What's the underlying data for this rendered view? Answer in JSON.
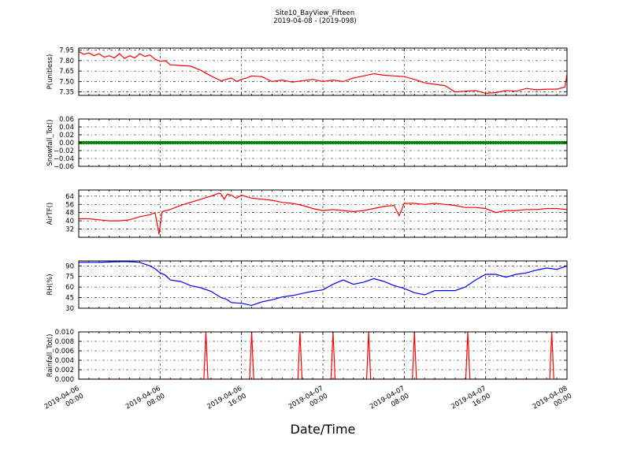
{
  "title": "Site10_BayView_Fifteen",
  "subtitle": "2019-04-08 - (2019-098)",
  "xlabel": "Date/Time",
  "x_tick_labels": [
    [
      "2019-04-06",
      "00:00"
    ],
    [
      "2019-04-06",
      "08:00"
    ],
    [
      "2019-04-06",
      "16:00"
    ],
    [
      "2019-04-07",
      "00:00"
    ],
    [
      "2019-04-07",
      "08:00"
    ],
    [
      "2019-04-07",
      "16:00"
    ],
    [
      "2019-04-08",
      "00:00"
    ]
  ],
  "chart_data": [
    {
      "type": "line",
      "ylabel": "P(unitless)",
      "color": "#ff0000",
      "xlim": [
        0,
        48
      ],
      "ylim": [
        7.3,
        7.98
      ],
      "yticks": [
        "7.95",
        "7.80",
        "7.65",
        "7.50",
        "7.35"
      ],
      "ytick_values": [
        7.95,
        7.8,
        7.65,
        7.5,
        7.35
      ],
      "grid": true,
      "series": [
        {
          "x": [
            0,
            0.5,
            1,
            1.5,
            2,
            2.5,
            3,
            3.5,
            4,
            4.5,
            5,
            5.5,
            6,
            6.5,
            7,
            7.5,
            8,
            8.5,
            9,
            10,
            11,
            12,
            13,
            14,
            15,
            15.5,
            16,
            16.5,
            17,
            18,
            19,
            20,
            21,
            22,
            23,
            24,
            25,
            26,
            27,
            28,
            29,
            30,
            31,
            32,
            33,
            34,
            35,
            36,
            37,
            38,
            39,
            40,
            41,
            42,
            43,
            44,
            45,
            46,
            47,
            47.8,
            48
          ],
          "y": [
            7.93,
            7.89,
            7.91,
            7.87,
            7.9,
            7.85,
            7.87,
            7.84,
            7.9,
            7.83,
            7.87,
            7.84,
            7.9,
            7.86,
            7.88,
            7.82,
            7.79,
            7.8,
            7.74,
            7.73,
            7.72,
            7.66,
            7.58,
            7.51,
            7.55,
            7.5,
            7.53,
            7.55,
            7.58,
            7.57,
            7.5,
            7.52,
            7.49,
            7.51,
            7.53,
            7.5,
            7.52,
            7.5,
            7.55,
            7.58,
            7.61,
            7.59,
            7.58,
            7.57,
            7.53,
            7.48,
            7.46,
            7.44,
            7.35,
            7.36,
            7.37,
            7.33,
            7.34,
            7.37,
            7.36,
            7.4,
            7.38,
            7.39,
            7.39,
            7.42,
            7.6
          ]
        }
      ]
    },
    {
      "type": "scatter",
      "ylabel": "Snowfall_Tot()",
      "color": "#008000",
      "xlim": [
        0,
        48
      ],
      "ylim": [
        -0.06,
        0.06
      ],
      "yticks": [
        "0.06",
        "0.04",
        "0.02",
        "0.00",
        "−0.02",
        "−0.04",
        "−0.06"
      ],
      "ytick_values": [
        0.06,
        0.04,
        0.02,
        0.0,
        -0.02,
        -0.04,
        -0.06
      ],
      "grid": true,
      "series": [
        {
          "x_start": 0,
          "x_end": 48,
          "x_step": 0.25,
          "constant_y": 0.0
        }
      ]
    },
    {
      "type": "line",
      "ylabel": "AirTF()",
      "color": "#ff0000",
      "xlim": [
        0,
        48
      ],
      "ylim": [
        24,
        70
      ],
      "yticks": [
        "64",
        "56",
        "48",
        "40",
        "32"
      ],
      "ytick_values": [
        64,
        56,
        48,
        40,
        32
      ],
      "grid": true,
      "series": [
        {
          "x": [
            0,
            1,
            2,
            3,
            4,
            5,
            6,
            7,
            7.5,
            7.9,
            8.2,
            9,
            10,
            11,
            12,
            13,
            13.8,
            14,
            14.3,
            14.6,
            15,
            15.5,
            16,
            17,
            18,
            19,
            20,
            21,
            22,
            23,
            24,
            25,
            26,
            27,
            28,
            29,
            30,
            31,
            31.5,
            32,
            33,
            34,
            35,
            36,
            37,
            38,
            39,
            40,
            41,
            42,
            43,
            44,
            45,
            46,
            47,
            48
          ],
          "y": [
            42,
            42,
            41,
            40,
            40,
            41,
            44,
            46,
            48,
            27,
            49,
            51,
            55,
            58,
            61,
            64,
            67,
            66,
            61,
            66,
            65,
            62,
            65,
            62,
            61,
            60,
            58,
            57,
            55,
            52,
            50,
            51,
            50,
            49,
            50,
            52,
            54,
            55,
            45,
            57,
            57,
            56,
            57,
            56,
            55,
            53,
            53,
            52,
            48,
            50,
            50,
            51,
            51,
            52,
            52,
            51
          ]
        }
      ]
    },
    {
      "type": "line",
      "ylabel": "RH(%)",
      "color": "#0000ff",
      "xlim": [
        0,
        48
      ],
      "ylim": [
        30,
        97
      ],
      "yticks": [
        "90",
        "75",
        "60",
        "45",
        "30"
      ],
      "ytick_values": [
        90,
        75,
        60,
        45,
        30
      ],
      "grid": true,
      "series": [
        {
          "x": [
            0,
            2,
            4,
            5,
            6,
            7,
            7.5,
            8,
            8.5,
            9,
            10,
            11,
            12,
            13,
            14,
            14.5,
            15,
            16,
            17,
            18,
            19,
            20,
            21,
            22,
            23,
            24,
            25,
            26,
            27,
            28,
            29,
            30,
            31,
            32,
            33,
            34,
            35,
            36,
            37,
            38,
            39,
            40,
            41,
            42,
            43,
            44,
            45,
            46,
            47,
            48
          ],
          "y": [
            95,
            95,
            96,
            96,
            95,
            90,
            86,
            80,
            77,
            70,
            68,
            62,
            59,
            54,
            45,
            43,
            38,
            37,
            34,
            39,
            42,
            46,
            48,
            51,
            54,
            56,
            64,
            70,
            64,
            67,
            72,
            68,
            62,
            58,
            52,
            49,
            55,
            55,
            55,
            60,
            70,
            78,
            78,
            74,
            78,
            80,
            84,
            87,
            85,
            90
          ]
        }
      ]
    },
    {
      "type": "line",
      "ylabel": "Rainfall_Tot()",
      "color": "#ff0000",
      "xlim": [
        0,
        48
      ],
      "ylim": [
        0,
        0.01
      ],
      "yticks": [
        "0.010",
        "0.008",
        "0.006",
        "0.004",
        "0.002",
        "0.000"
      ],
      "ytick_values": [
        0.01,
        0.008,
        0.006,
        0.004,
        0.002,
        0.0
      ],
      "grid": true,
      "spikes_at_x": [
        12.5,
        17.0,
        21.75,
        25.0,
        28.5,
        33.0,
        38.25,
        46.5
      ],
      "spike_value": 0.01
    }
  ]
}
